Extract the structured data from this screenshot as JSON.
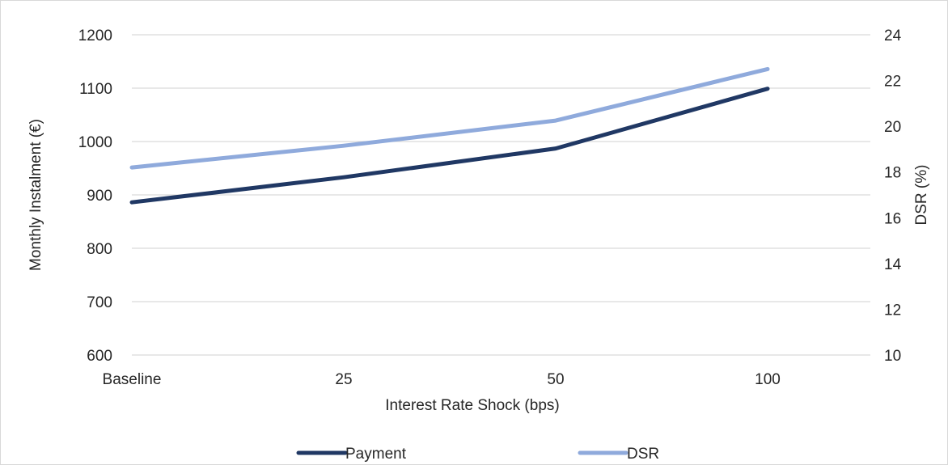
{
  "chart_data": {
    "type": "line",
    "title": "",
    "xlabel": "Interest Rate Shock (bps)",
    "ylabel": "Monthly Instalment (€)",
    "y2label": "DSR (%)",
    "categories": [
      "Baseline",
      "25",
      "50",
      "100"
    ],
    "ylim": [
      600,
      1200
    ],
    "yticks": [
      600,
      700,
      800,
      900,
      1000,
      1100,
      1200
    ],
    "y2lim": [
      10,
      24
    ],
    "y2ticks": [
      10,
      12,
      14,
      16,
      18,
      20,
      22,
      24
    ],
    "grid": true,
    "legend_position": "bottom",
    "series": [
      {
        "name": "Payment",
        "axis": "left",
        "color": "#203864",
        "values": [
          886,
          933,
          987,
          1099
        ]
      },
      {
        "name": "DSR",
        "axis": "right",
        "color": "#8faadc",
        "values": [
          18.2,
          19.15,
          20.25,
          22.5
        ]
      }
    ]
  }
}
